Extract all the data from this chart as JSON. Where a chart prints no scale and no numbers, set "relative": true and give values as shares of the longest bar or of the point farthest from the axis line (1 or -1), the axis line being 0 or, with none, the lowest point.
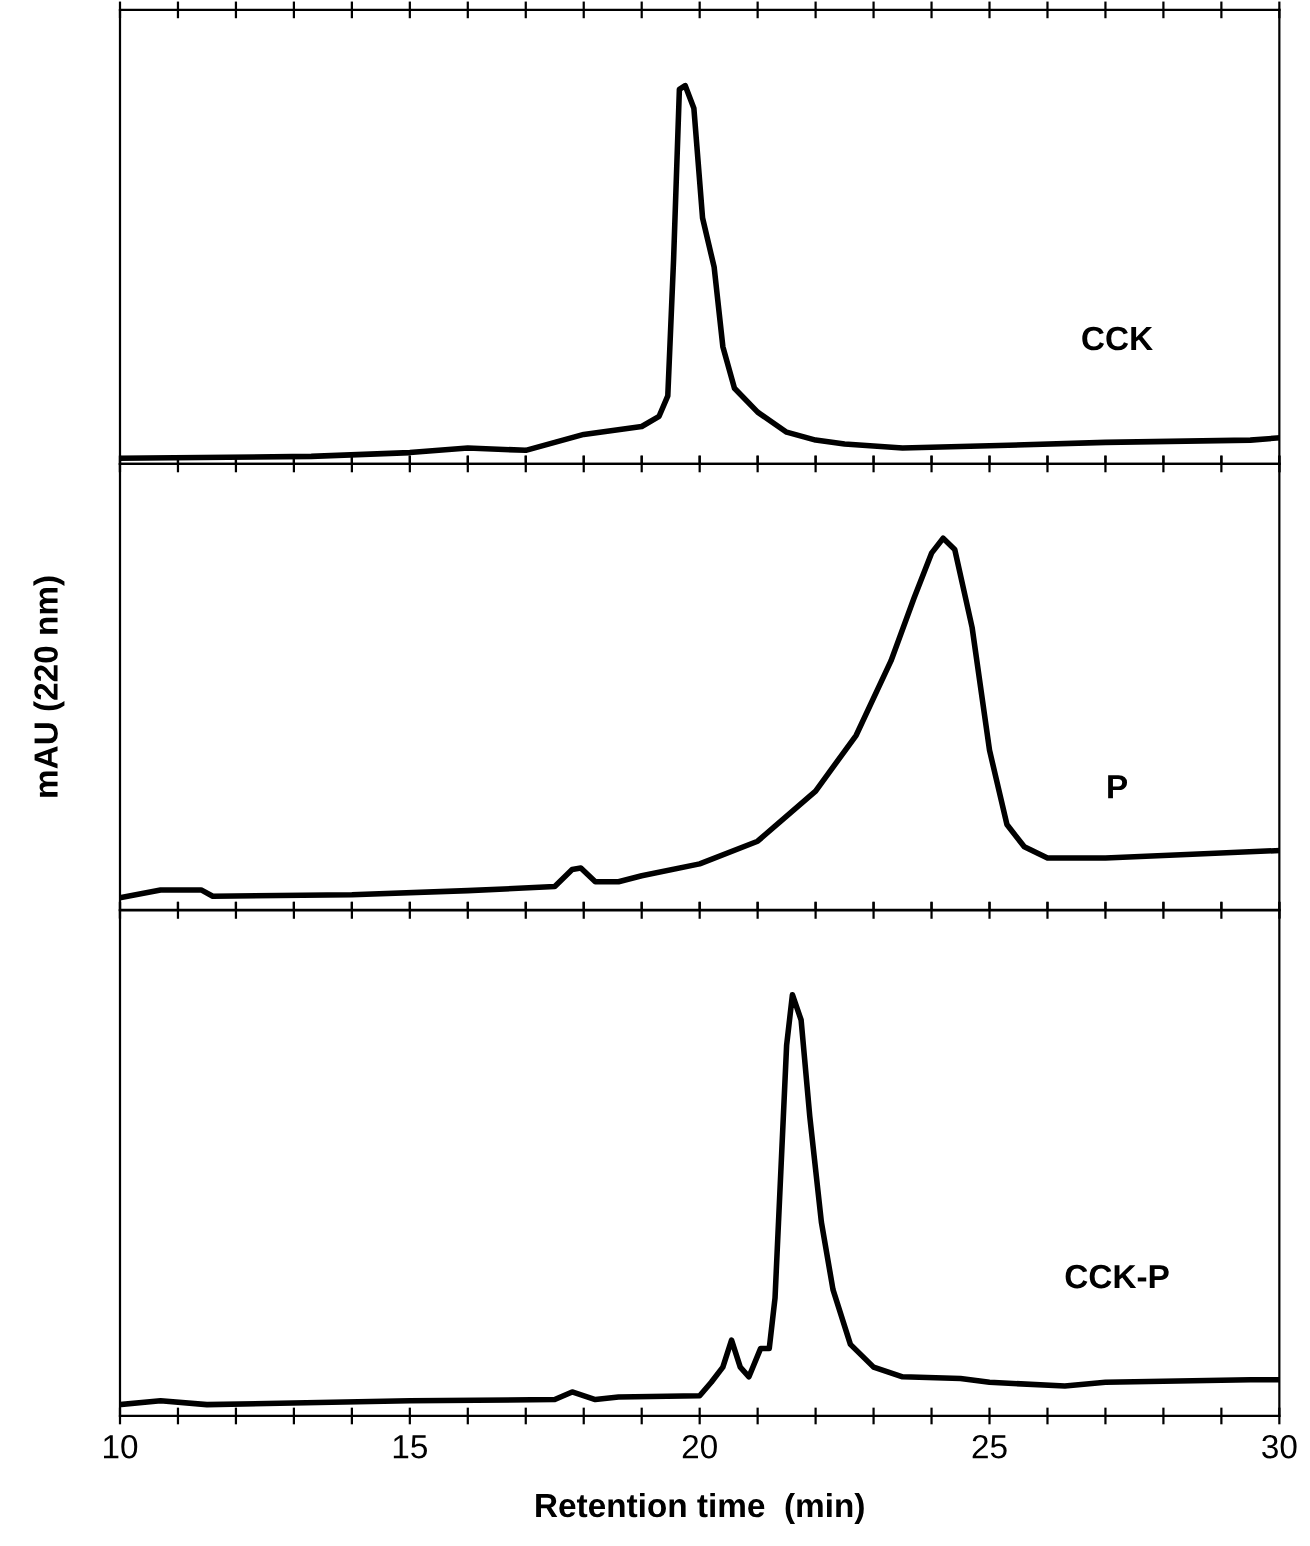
{
  "chart_data": [
    {
      "type": "line",
      "relative": true,
      "tick_labels": false,
      "xlim": [
        10,
        30
      ],
      "xticks": [
        {
          "value": 10,
          "label": null
        },
        {
          "value": 11,
          "label": null
        },
        {
          "value": 12,
          "label": null
        },
        {
          "value": 13,
          "label": null
        },
        {
          "value": 14,
          "label": null
        },
        {
          "value": 15,
          "label": null
        },
        {
          "value": 16,
          "label": null
        },
        {
          "value": 17,
          "label": null
        },
        {
          "value": 18,
          "label": null
        },
        {
          "value": 19,
          "label": null
        },
        {
          "value": 20,
          "label": null
        },
        {
          "value": 21,
          "label": null
        },
        {
          "value": 22,
          "label": null
        },
        {
          "value": 23,
          "label": null
        },
        {
          "value": 24,
          "label": null
        },
        {
          "value": 25,
          "label": null
        },
        {
          "value": 26,
          "label": null
        },
        {
          "value": 27,
          "label": null
        },
        {
          "value": 28,
          "label": null
        },
        {
          "value": 29,
          "label": null
        },
        {
          "value": 30,
          "label": null
        }
      ],
      "series": [
        {
          "name": "CCK",
          "color": "#000000",
          "x": [
            10,
            13.3,
            15,
            16,
            17,
            17.5,
            18,
            19,
            19.3,
            19.45,
            19.55,
            19.65,
            19.75,
            19.9,
            20.05,
            20.25,
            20.4,
            20.6,
            21,
            21.5,
            22,
            22.5,
            23.5,
            25,
            27,
            29.5,
            30
          ],
          "values": [
            0.015,
            0.02,
            0.03,
            0.042,
            0.036,
            0.057,
            0.078,
            0.099,
            0.126,
            0.18,
            0.54,
            0.99,
            1,
            0.94,
            0.65,
            0.52,
            0.31,
            0.2,
            0.137,
            0.084,
            0.063,
            0.053,
            0.042,
            0.048,
            0.057,
            0.063,
            0.069
          ]
        }
      ]
    },
    {
      "type": "line",
      "relative": true,
      "tick_labels": false,
      "ylabel": "mAU (220 nm)",
      "xlim": [
        10,
        30
      ],
      "xticks": [
        {
          "value": 10,
          "label": null
        },
        {
          "value": 11,
          "label": null
        },
        {
          "value": 12,
          "label": null
        },
        {
          "value": 13,
          "label": null
        },
        {
          "value": 14,
          "label": null
        },
        {
          "value": 15,
          "label": null
        },
        {
          "value": 16,
          "label": null
        },
        {
          "value": 17,
          "label": null
        },
        {
          "value": 18,
          "label": null
        },
        {
          "value": 19,
          "label": null
        },
        {
          "value": 20,
          "label": null
        },
        {
          "value": 21,
          "label": null
        },
        {
          "value": 22,
          "label": null
        },
        {
          "value": 23,
          "label": null
        },
        {
          "value": 24,
          "label": null
        },
        {
          "value": 25,
          "label": null
        },
        {
          "value": 26,
          "label": null
        },
        {
          "value": 27,
          "label": null
        },
        {
          "value": 28,
          "label": null
        },
        {
          "value": 29,
          "label": null
        },
        {
          "value": 30,
          "label": null
        }
      ],
      "series": [
        {
          "name": "P",
          "color": "#000000",
          "x": [
            10,
            10.7,
            11.4,
            11.6,
            14,
            16,
            17.5,
            17.8,
            17.95,
            18.2,
            18.6,
            19,
            20,
            21,
            22,
            22.7,
            23.3,
            23.7,
            24,
            24.2,
            24.4,
            24.7,
            25,
            25.3,
            25.6,
            26,
            27,
            28.5,
            30
          ],
          "values": [
            0.033,
            0.054,
            0.054,
            0.037,
            0.041,
            0.052,
            0.063,
            0.109,
            0.113,
            0.076,
            0.076,
            0.092,
            0.124,
            0.185,
            0.32,
            0.47,
            0.67,
            0.84,
            0.96,
            1,
            0.97,
            0.76,
            0.43,
            0.23,
            0.17,
            0.14,
            0.14,
            0.15,
            0.16
          ]
        }
      ]
    },
    {
      "type": "line",
      "relative": true,
      "tick_labels": "x",
      "xlabel": "Retention time  (min)",
      "xlim": [
        10,
        30
      ],
      "xticks": [
        10,
        {
          "value": 11,
          "label": null
        },
        {
          "value": 12,
          "label": null
        },
        {
          "value": 13,
          "label": null
        },
        {
          "value": 14,
          "label": null
        },
        15,
        {
          "value": 16,
          "label": null
        },
        {
          "value": 17,
          "label": null
        },
        {
          "value": 18,
          "label": null
        },
        {
          "value": 19,
          "label": null
        },
        20,
        {
          "value": 21,
          "label": null
        },
        {
          "value": 22,
          "label": null
        },
        {
          "value": 23,
          "label": null
        },
        {
          "value": 24,
          "label": null
        },
        25,
        {
          "value": 26,
          "label": null
        },
        {
          "value": 27,
          "label": null
        },
        {
          "value": 28,
          "label": null
        },
        {
          "value": 29,
          "label": null
        },
        30
      ],
      "series": [
        {
          "name": "CCK-P",
          "color": "#000000",
          "x": [
            10,
            10.7,
            11.5,
            15,
            17.5,
            17.8,
            18.2,
            18.6,
            20,
            20.2,
            20.4,
            20.55,
            20.7,
            20.85,
            21.05,
            21.2,
            21.3,
            21.4,
            21.5,
            21.6,
            21.75,
            21.9,
            22.1,
            22.3,
            22.6,
            23,
            23.5,
            24.5,
            25,
            26.3,
            27,
            29.5,
            30
          ],
          "values": [
            0.027,
            0.036,
            0.027,
            0.036,
            0.039,
            0.057,
            0.039,
            0.045,
            0.048,
            0.08,
            0.116,
            0.18,
            0.116,
            0.093,
            0.16,
            0.16,
            0.28,
            0.58,
            0.88,
            1,
            0.94,
            0.71,
            0.46,
            0.3,
            0.17,
            0.116,
            0.093,
            0.089,
            0.08,
            0.071,
            0.08,
            0.086,
            0.086
          ]
        }
      ]
    }
  ]
}
